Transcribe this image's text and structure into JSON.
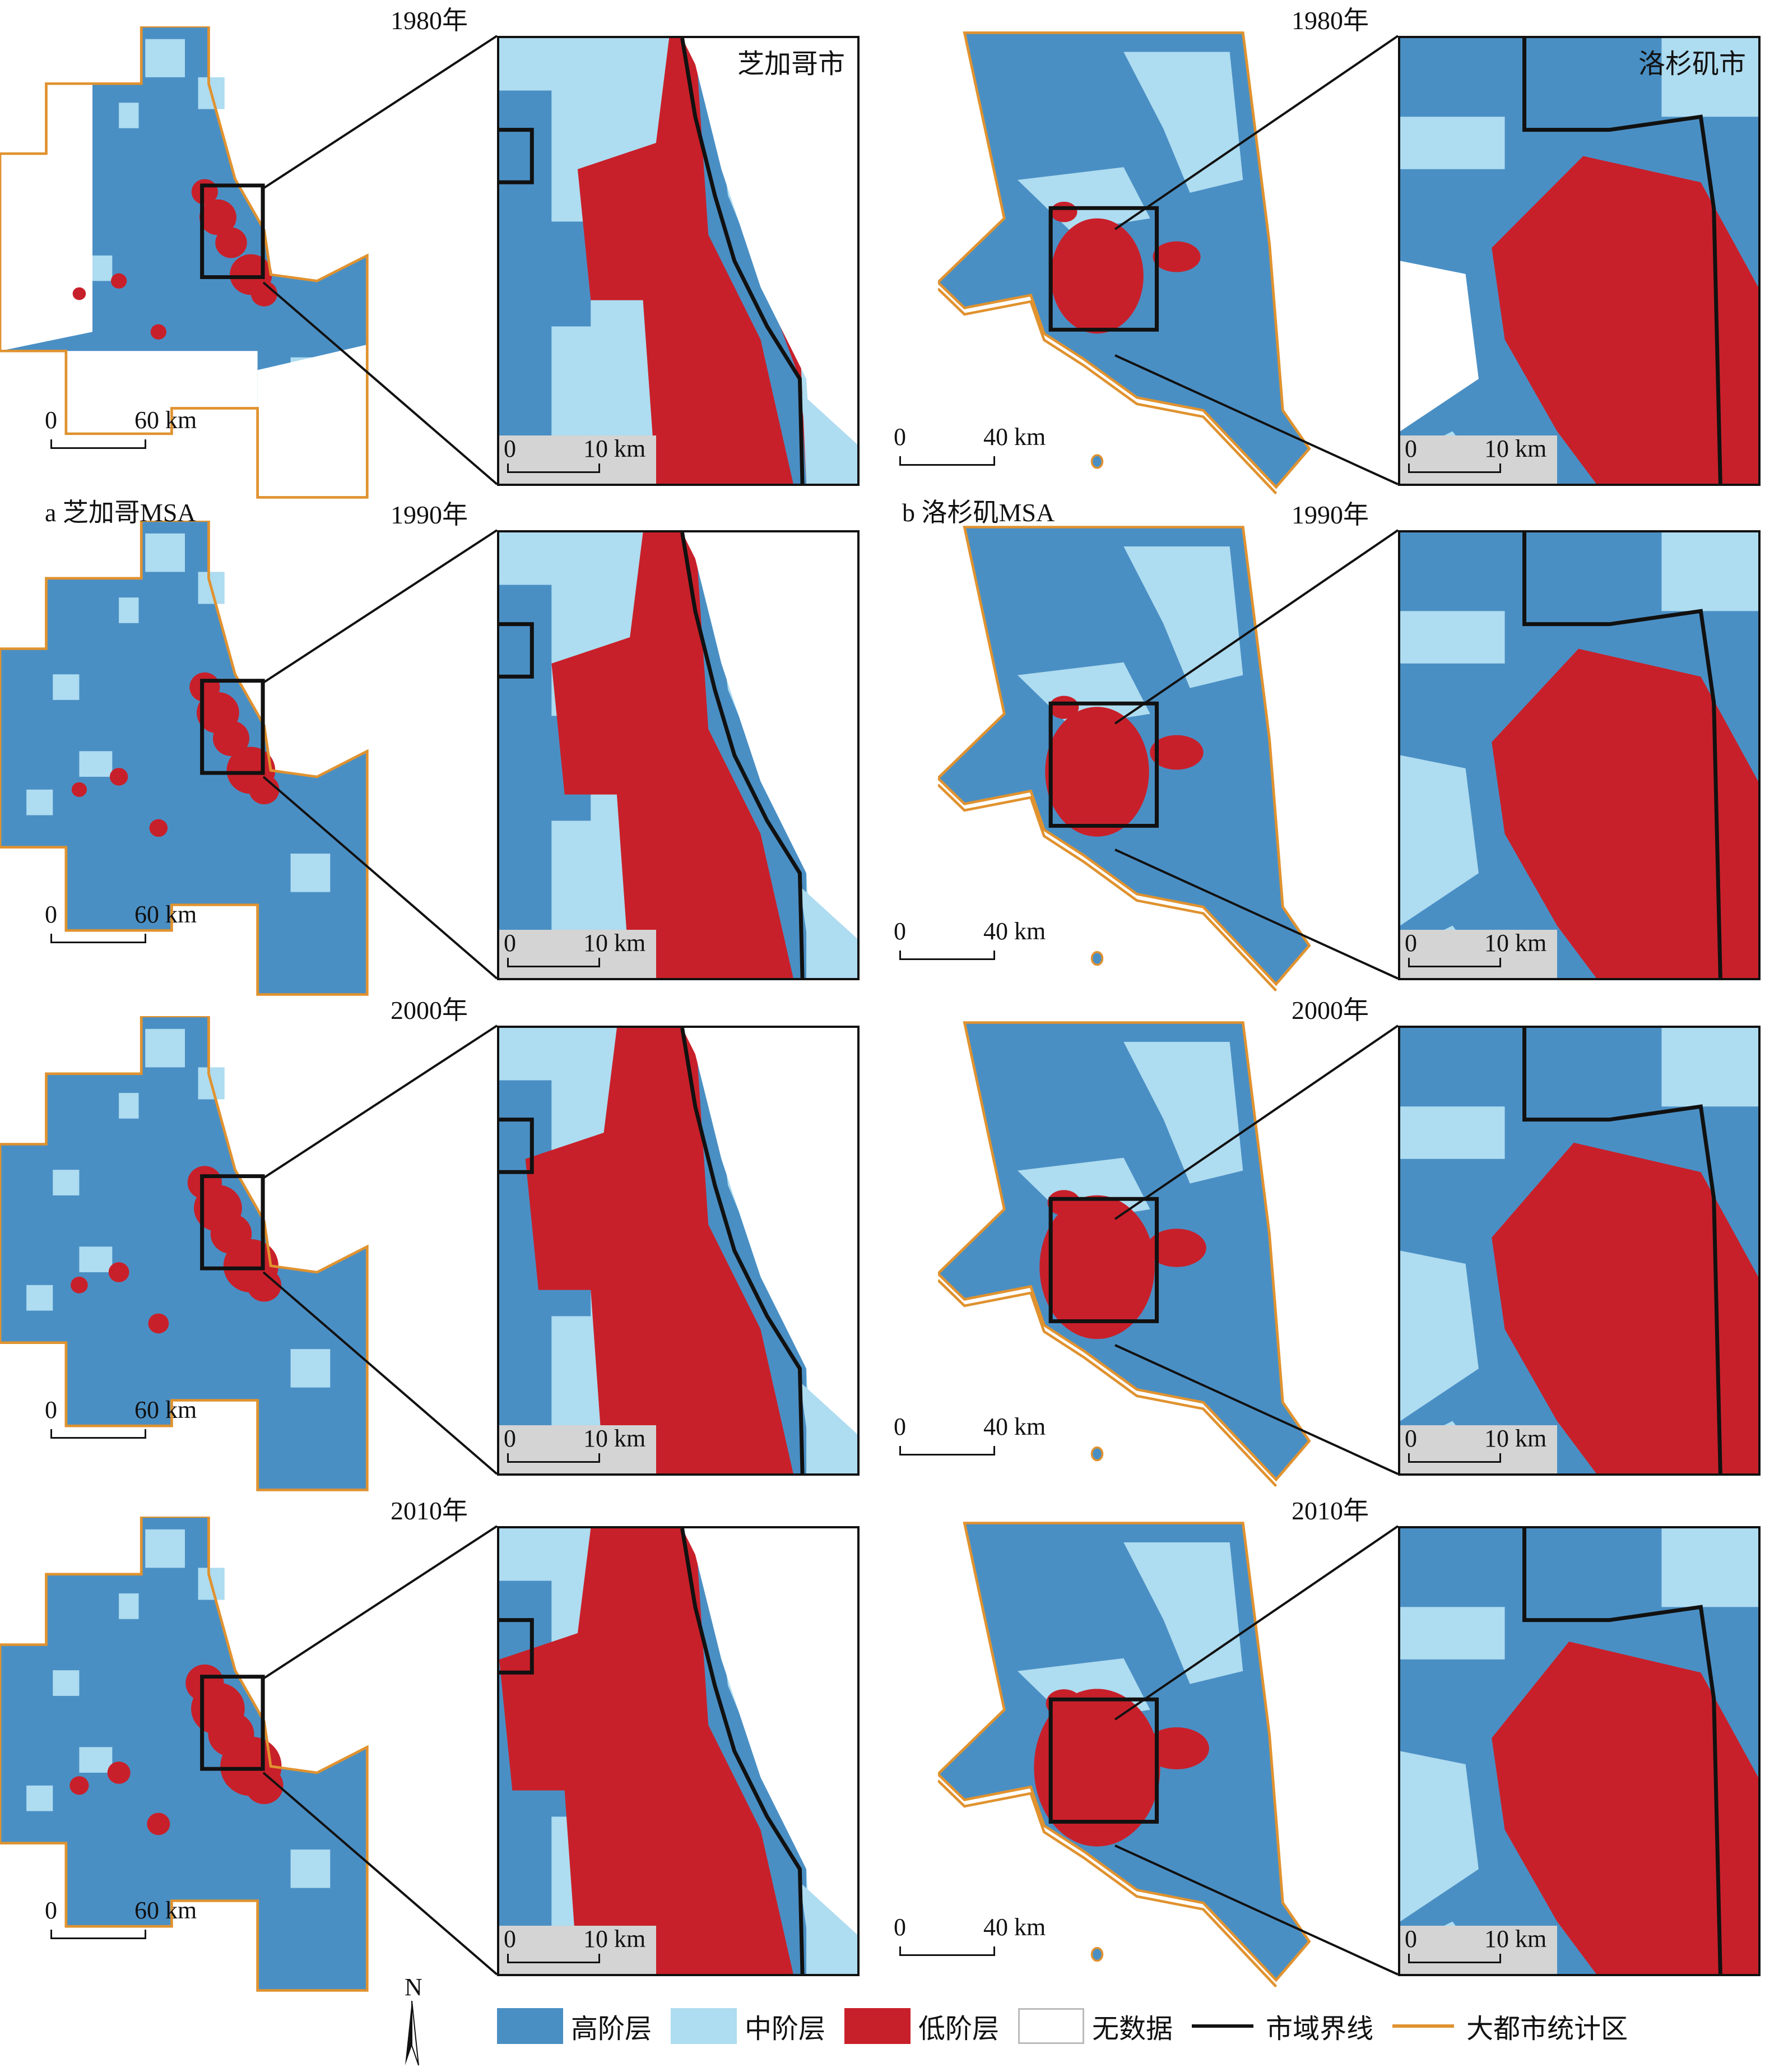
{
  "colors": {
    "high": "#4a8fc4",
    "mid": "#aedcf0",
    "low": "#c8202a",
    "nodata": "#ffffff",
    "city_line": "#111111",
    "msa_line": "#e0922f",
    "scale_bg": "#d4d4d4"
  },
  "years": [
    "1980年",
    "1990年",
    "2000年",
    "2010年"
  ],
  "panels": {
    "chicago": {
      "label": "a 芝加哥MSA",
      "city": "芝加哥市",
      "overview_scale": {
        "zero": "0",
        "max": "60 km"
      },
      "inset_scale": {
        "zero": "0",
        "max": "10 km"
      }
    },
    "la": {
      "label": "b 洛杉矶MSA",
      "city": "洛杉矶市",
      "overview_scale": {
        "zero": "0",
        "max": "40 km"
      },
      "inset_scale": {
        "zero": "0",
        "max": "10 km"
      }
    }
  },
  "north": "N",
  "legend": [
    {
      "label": "高阶层",
      "type": "swatch",
      "color": "#4a8fc4"
    },
    {
      "label": "中阶层",
      "type": "swatch",
      "color": "#aedcf0"
    },
    {
      "label": "低阶层",
      "type": "swatch",
      "color": "#c8202a"
    },
    {
      "label": "无数据",
      "type": "swatch",
      "color": "#ffffff"
    },
    {
      "label": "市域界线",
      "type": "line",
      "color": "#111111"
    },
    {
      "label": "大都市统计区",
      "type": "line",
      "color": "#e0922f"
    }
  ]
}
